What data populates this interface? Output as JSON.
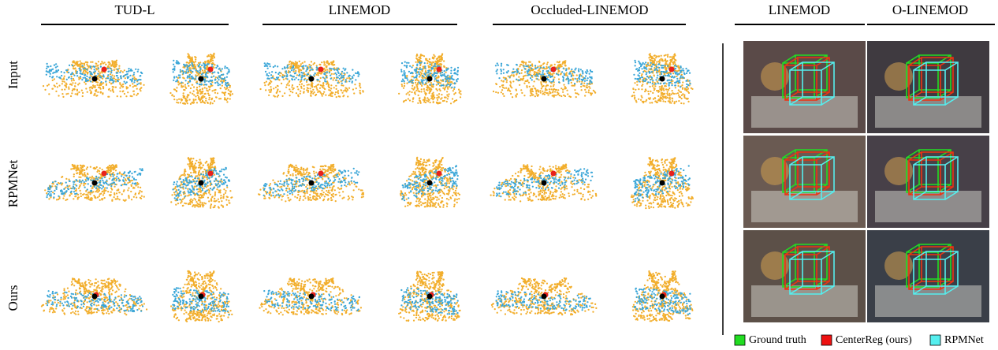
{
  "columns": {
    "left": [
      "TUD-L",
      "LINEMOD",
      "Occluded-LINEMOD"
    ],
    "right": [
      "LINEMOD",
      "O-LINEMOD"
    ]
  },
  "rows": [
    "Input",
    "RPMNet",
    "Ours"
  ],
  "legend": [
    "Ground truth",
    "CenterReg (ours)",
    "RPMNet"
  ]
}
